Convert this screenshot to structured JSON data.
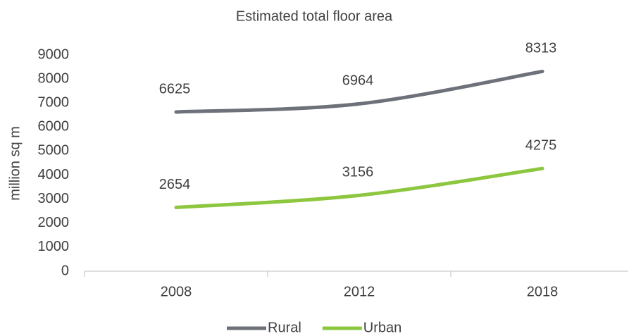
{
  "chart_data": {
    "type": "line",
    "title": "Estimated total floor area",
    "y_label": "million sq m",
    "categories": [
      "2008",
      "2012",
      "2018"
    ],
    "series": [
      {
        "name": "Rural",
        "color": "#6d7179",
        "values": [
          6625,
          6964,
          8313
        ]
      },
      {
        "name": "Urban",
        "color": "#8dc63f",
        "values": [
          2654,
          3156,
          4275
        ]
      }
    ],
    "ylim": [
      0,
      9000
    ],
    "yticks": [
      0,
      1000,
      2000,
      3000,
      4000,
      5000,
      6000,
      7000,
      8000,
      9000
    ],
    "grid": false,
    "legend": "bottom"
  }
}
